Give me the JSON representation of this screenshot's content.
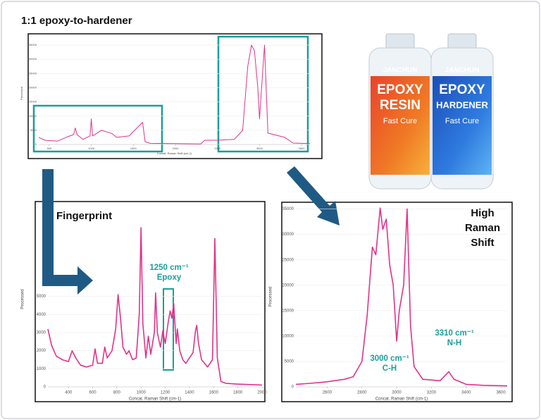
{
  "title": "1:1 epoxy-to-hardener",
  "product": {
    "bottles": [
      {
        "brand": "JANCHUN",
        "line1": "EPOXY",
        "line2": "RESIN",
        "line3": "Fast Cure"
      },
      {
        "brand": "JANCHUN",
        "line1": "EPOXY",
        "line2": "HARDENER",
        "line3": "Fast Cure"
      }
    ]
  },
  "chart_data": [
    {
      "type": "line",
      "x_label": "Concat. Raman Shift (cm-1)",
      "y_label": "Processed",
      "color": "#e0338a",
      "grid": true,
      "x": [
        375,
        450,
        600,
        700,
        790,
        810,
        830,
        900,
        985,
        1000,
        1015,
        1120,
        1250,
        1300,
        1450,
        1610,
        1640,
        1700,
        2000,
        2300,
        2350,
        2500,
        2700,
        2800,
        2860,
        2905,
        2940,
        2980,
        3000,
        3060,
        3100,
        3300,
        3400,
        3600
      ],
      "values": [
        2500,
        1500,
        1200,
        2500,
        3500,
        5800,
        3500,
        1800,
        3000,
        9000,
        3000,
        5000,
        3800,
        2500,
        3000,
        7800,
        1000,
        400,
        300,
        200,
        1500,
        1500,
        1800,
        5000,
        27500,
        35000,
        33000,
        20000,
        9000,
        35000,
        4000,
        2500,
        500,
        300
      ],
      "xlim": [
        375,
        3600
      ],
      "xticks": [
        500,
        1000,
        1500,
        2000,
        2500,
        3000,
        3500
      ],
      "ylim": [
        0,
        36000
      ],
      "yticks": [
        0,
        5000,
        10000,
        15000,
        20000,
        25000,
        30000,
        35000
      ]
    },
    {
      "type": "line",
      "title": "Fingerprint",
      "annotations": [
        "1250 cm⁻¹",
        "Epoxy"
      ],
      "x_label": "Concat. Raman Shift (cm-1)",
      "y_label": "Processed",
      "color": "#e0338a",
      "grid": true,
      "x": [
        230,
        260,
        300,
        350,
        400,
        430,
        460,
        500,
        550,
        600,
        620,
        640,
        680,
        700,
        720,
        760,
        790,
        810,
        830,
        850,
        880,
        900,
        930,
        960,
        985,
        1000,
        1015,
        1040,
        1060,
        1080,
        1110,
        1120,
        1135,
        1160,
        1180,
        1200,
        1225,
        1240,
        1255,
        1270,
        1290,
        1300,
        1320,
        1345,
        1370,
        1400,
        1430,
        1450,
        1460,
        1475,
        1500,
        1550,
        1590,
        1610,
        1630,
        1660,
        1700,
        1800,
        2000
      ],
      "values": [
        3200,
        2300,
        1700,
        1500,
        1400,
        2000,
        1600,
        1200,
        1100,
        1200,
        2100,
        1300,
        1300,
        2200,
        1600,
        2000,
        3200,
        5100,
        3800,
        2200,
        1800,
        2000,
        1500,
        1600,
        4000,
        8800,
        3500,
        1600,
        2800,
        1800,
        3000,
        5200,
        3000,
        2200,
        3100,
        2400,
        3600,
        4200,
        3800,
        4600,
        2400,
        3200,
        2000,
        1500,
        1300,
        1600,
        1900,
        3100,
        3400,
        2400,
        1500,
        1100,
        1500,
        8200,
        1600,
        300,
        200,
        150,
        100
      ],
      "xlim": [
        230,
        2000
      ],
      "xticks": [
        400,
        600,
        800,
        1000,
        1200,
        1400,
        1600,
        1800,
        2000
      ],
      "ylim": [
        0,
        9700
      ],
      "yticks": [
        0,
        1000,
        2000,
        3000,
        4000,
        5000
      ]
    },
    {
      "type": "line",
      "title": "High Raman Shift",
      "annotations": [
        "3000 cm⁻¹",
        "C-H",
        "3310 cm⁻¹",
        "N-H"
      ],
      "x_label": "Concat. Raman Shift (cm-1)",
      "y_label": "Processed",
      "color": "#e0338a",
      "grid": true,
      "x": [
        2420,
        2500,
        2600,
        2700,
        2750,
        2800,
        2830,
        2860,
        2880,
        2905,
        2920,
        2940,
        2960,
        2980,
        3000,
        3015,
        3040,
        3060,
        3080,
        3100,
        3150,
        3250,
        3300,
        3330,
        3400,
        3500,
        3636
      ],
      "values": [
        500,
        700,
        1000,
        1500,
        2000,
        5000,
        14000,
        27500,
        26000,
        35200,
        31000,
        33000,
        24000,
        20000,
        9000,
        15000,
        20000,
        35000,
        12000,
        4000,
        1500,
        1200,
        3000,
        1500,
        500,
        300,
        200
      ],
      "xlim": [
        2420,
        3636
      ],
      "xticks": [
        2600,
        2800,
        3000,
        3200,
        3400,
        3600
      ],
      "ylim": [
        0,
        35500
      ],
      "yticks": [
        0,
        5000,
        10000,
        15000,
        20000,
        25000,
        30000,
        35000
      ]
    }
  ]
}
